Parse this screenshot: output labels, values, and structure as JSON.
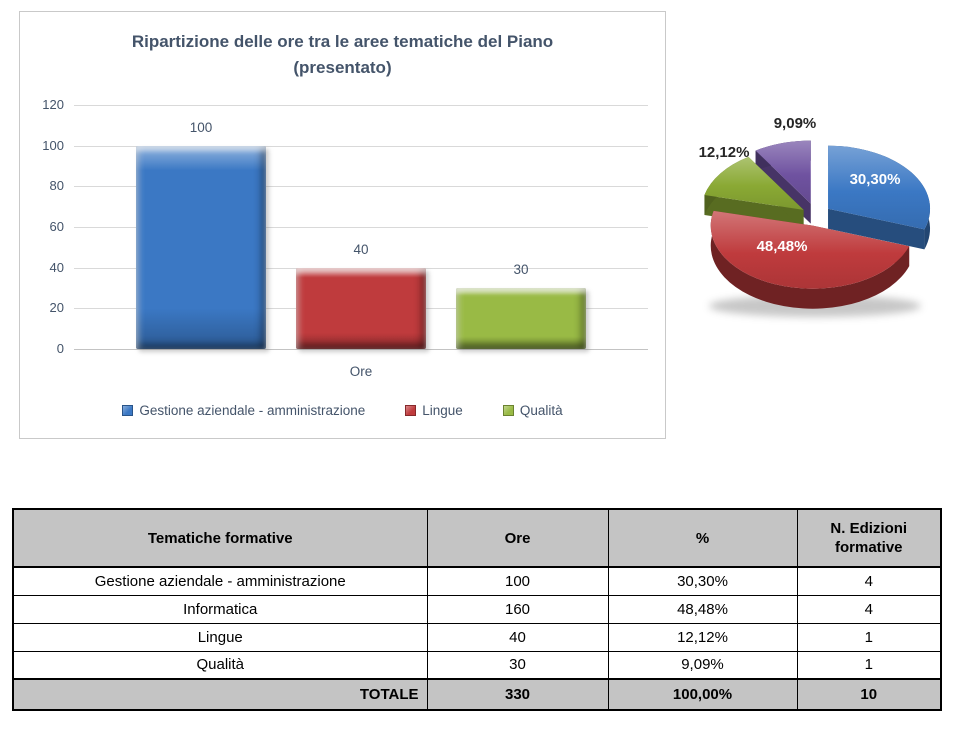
{
  "chart_data": [
    {
      "type": "bar",
      "title": "Ripartizione delle ore tra le aree tematiche del Piano (presentato)",
      "title_line1": "Ripartizione delle ore tra le aree tematiche del Piano",
      "title_line2": "(presentato)",
      "categories": [
        "Ore"
      ],
      "xlabel": "Ore",
      "ylabel": "",
      "ylim": [
        0,
        120
      ],
      "y_ticks": [
        0,
        20,
        40,
        60,
        80,
        100,
        120
      ],
      "grid": true,
      "legend_position": "bottom",
      "series": [
        {
          "name": "Gestione aziendale - amministrazione",
          "values": [
            100
          ],
          "color": "#3B78C4"
        },
        {
          "name": "Lingue",
          "values": [
            40
          ],
          "color": "#BF3B3D"
        },
        {
          "name": "Qualità",
          "values": [
            30
          ],
          "color": "#99BA45"
        }
      ]
    },
    {
      "type": "pie",
      "style": "3d-exploded",
      "start_angle_deg": 0,
      "direction": "clockwise",
      "slices": [
        {
          "name": "Gestione aziendale - amministrazione",
          "value_pct": 30.3,
          "label": "30,30%",
          "label_inside": true,
          "color": "#3B78C4"
        },
        {
          "name": "Informatica",
          "value_pct": 48.48,
          "label": "48,48%",
          "label_inside": true,
          "color": "#BF3B3D"
        },
        {
          "name": "Lingue",
          "value_pct": 12.12,
          "label": "12,12%",
          "label_inside": false,
          "color": "#8AA934"
        },
        {
          "name": "Qualità",
          "value_pct": 9.09,
          "label": "9,09%",
          "label_inside": false,
          "color": "#6F52A0"
        }
      ]
    },
    {
      "type": "table",
      "headers": [
        "Tematiche formative",
        "Ore",
        "%",
        "N. Edizioni formative"
      ],
      "rows": [
        [
          "Gestione aziendale - amministrazione",
          "100",
          "30,30%",
          "4"
        ],
        [
          "Informatica",
          "160",
          "48,48%",
          "4"
        ],
        [
          "Lingue",
          "40",
          "12,12%",
          "1"
        ],
        [
          "Qualità",
          "30",
          "9,09%",
          "1"
        ]
      ],
      "total_row": [
        "TOTALE",
        "330",
        "100,00%",
        "10"
      ],
      "header_bg": "#C4C4C4",
      "text_color": "#000000"
    }
  ]
}
